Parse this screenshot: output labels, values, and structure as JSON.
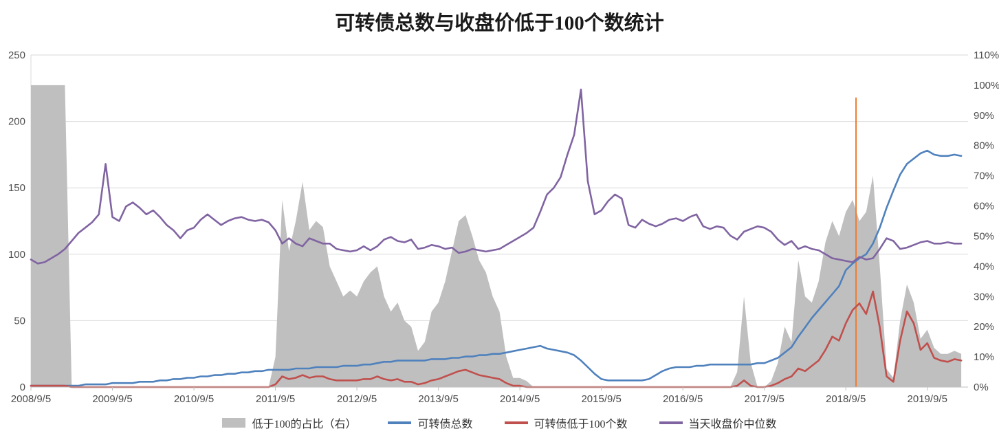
{
  "chart_data": {
    "type": "combo",
    "title": "可转债总数与收盘价低于100个数统计",
    "x_unit": "months since 2008/9",
    "x_domain": [
      0,
      138
    ],
    "x_ticks": [
      {
        "pos": 0,
        "label": "2008/9/5"
      },
      {
        "pos": 12,
        "label": "2009/9/5"
      },
      {
        "pos": 24,
        "label": "2010/9/5"
      },
      {
        "pos": 36,
        "label": "2011/9/5"
      },
      {
        "pos": 48,
        "label": "2012/9/5"
      },
      {
        "pos": 60,
        "label": "2013/9/5"
      },
      {
        "pos": 72,
        "label": "2014/9/5"
      },
      {
        "pos": 84,
        "label": "2015/9/5"
      },
      {
        "pos": 96,
        "label": "2016/9/5"
      },
      {
        "pos": 108,
        "label": "2017/9/5"
      },
      {
        "pos": 120,
        "label": "2018/9/5"
      },
      {
        "pos": 132,
        "label": "2019/9/5"
      }
    ],
    "left_axis": {
      "min": 0,
      "max": 250,
      "ticks": [
        0,
        50,
        100,
        150,
        200,
        250
      ]
    },
    "right_axis": {
      "min": 0,
      "max": 110,
      "step": 10,
      "tick_labels": [
        "0%",
        "10%",
        "20%",
        "30%",
        "40%",
        "50%",
        "60%",
        "70%",
        "80%",
        "90%",
        "100%",
        "110%"
      ]
    },
    "series": [
      {
        "name": "低于100的占比（右）",
        "type": "area",
        "axis": "right",
        "color": "#BFBFBF",
        "values": [
          100,
          100,
          100,
          100,
          100,
          100,
          0,
          0,
          0,
          0,
          0,
          0,
          0,
          0,
          0,
          0,
          0,
          0,
          0,
          0,
          0,
          0,
          0,
          0,
          0,
          0,
          0,
          0,
          0,
          0,
          0,
          0,
          0,
          0,
          0,
          0,
          10,
          62,
          45,
          55,
          68,
          52,
          55,
          53,
          40,
          35,
          30,
          32,
          30,
          35,
          38,
          40,
          30,
          25,
          28,
          22,
          20,
          12,
          15,
          25,
          28,
          35,
          45,
          55,
          57,
          50,
          42,
          38,
          30,
          25,
          10,
          3,
          3,
          2,
          0,
          0,
          0,
          0,
          0,
          0,
          0,
          0,
          0,
          0,
          0,
          0,
          0,
          0,
          0,
          0,
          0,
          0,
          0,
          0,
          0,
          0,
          0,
          0,
          0,
          0,
          0,
          0,
          0,
          0,
          5,
          30,
          8,
          0,
          0,
          2,
          8,
          20,
          15,
          42,
          30,
          28,
          35,
          48,
          55,
          50,
          58,
          62,
          55,
          58,
          70,
          40,
          6,
          3,
          22,
          34,
          28,
          16,
          19,
          13,
          11,
          11,
          12,
          11
        ]
      },
      {
        "name": "可转债总数",
        "type": "line",
        "axis": "left",
        "color": "#4F81BD",
        "values": [
          1,
          1,
          1,
          1,
          1,
          1,
          1,
          1,
          2,
          2,
          2,
          2,
          3,
          3,
          3,
          3,
          4,
          4,
          4,
          5,
          5,
          6,
          6,
          7,
          7,
          8,
          8,
          9,
          9,
          10,
          10,
          11,
          11,
          12,
          12,
          13,
          13,
          13,
          13,
          14,
          14,
          14,
          15,
          15,
          15,
          15,
          16,
          16,
          16,
          17,
          17,
          18,
          19,
          19,
          20,
          20,
          20,
          20,
          20,
          21,
          21,
          21,
          22,
          22,
          23,
          23,
          24,
          24,
          25,
          25,
          26,
          27,
          28,
          29,
          30,
          31,
          29,
          28,
          27,
          26,
          24,
          20,
          15,
          10,
          6,
          5,
          5,
          5,
          5,
          5,
          5,
          6,
          9,
          12,
          14,
          15,
          15,
          15,
          16,
          16,
          17,
          17,
          17,
          17,
          17,
          17,
          17,
          18,
          18,
          20,
          22,
          26,
          30,
          38,
          45,
          52,
          58,
          64,
          70,
          76,
          88,
          93,
          97,
          100,
          108,
          120,
          135,
          148,
          160,
          168,
          172,
          176,
          178,
          175,
          174,
          174,
          175,
          174
        ]
      },
      {
        "name": "可转债低于100个数",
        "type": "line",
        "axis": "left",
        "color": "#C0504D",
        "values": [
          1,
          1,
          1,
          1,
          1,
          1,
          0,
          0,
          0,
          0,
          0,
          0,
          0,
          0,
          0,
          0,
          0,
          0,
          0,
          0,
          0,
          0,
          0,
          0,
          0,
          0,
          0,
          0,
          0,
          0,
          0,
          0,
          0,
          0,
          0,
          0,
          2,
          8,
          6,
          7,
          9,
          7,
          8,
          8,
          6,
          5,
          5,
          5,
          5,
          6,
          6,
          8,
          6,
          5,
          6,
          4,
          4,
          2,
          3,
          5,
          6,
          8,
          10,
          12,
          13,
          11,
          9,
          8,
          7,
          6,
          3,
          1,
          1,
          0,
          0,
          0,
          0,
          0,
          0,
          0,
          0,
          0,
          0,
          0,
          0,
          0,
          0,
          0,
          0,
          0,
          0,
          0,
          0,
          0,
          0,
          0,
          0,
          0,
          0,
          0,
          0,
          0,
          0,
          0,
          1,
          5,
          1,
          0,
          0,
          1,
          3,
          6,
          8,
          14,
          12,
          16,
          20,
          28,
          38,
          35,
          48,
          58,
          63,
          55,
          72,
          45,
          8,
          4,
          35,
          57,
          48,
          28,
          33,
          22,
          20,
          19,
          21,
          20
        ]
      },
      {
        "name": "当天收盘价中位数",
        "type": "line",
        "axis": "left",
        "color": "#8064A2",
        "values": [
          96,
          93,
          94,
          97,
          100,
          104,
          110,
          116,
          120,
          124,
          130,
          168,
          128,
          125,
          136,
          139,
          135,
          130,
          133,
          128,
          122,
          118,
          112,
          118,
          120,
          126,
          130,
          126,
          122,
          125,
          127,
          128,
          126,
          125,
          126,
          124,
          118,
          108,
          112,
          108,
          106,
          112,
          110,
          108,
          108,
          104,
          103,
          102,
          103,
          106,
          103,
          106,
          111,
          113,
          110,
          109,
          111,
          104,
          105,
          107,
          106,
          104,
          105,
          101,
          102,
          104,
          103,
          102,
          103,
          104,
          107,
          110,
          113,
          116,
          120,
          132,
          145,
          150,
          158,
          175,
          190,
          224,
          155,
          130,
          133,
          140,
          145,
          142,
          122,
          120,
          126,
          123,
          121,
          123,
          126,
          127,
          125,
          128,
          130,
          121,
          119,
          121,
          120,
          114,
          111,
          117,
          119,
          121,
          120,
          117,
          111,
          107,
          110,
          104,
          106,
          104,
          103,
          100,
          97,
          96,
          95,
          94,
          98,
          96,
          97,
          104,
          112,
          110,
          104,
          105,
          107,
          109,
          110,
          108,
          108,
          109,
          108,
          108
        ]
      }
    ],
    "annotation": {
      "type": "vertical-line",
      "x": 121.5,
      "y_top_left_scale": 218,
      "color": "#ED7D31"
    },
    "grid": {
      "horizontal": true,
      "color": "#d9d9d9"
    },
    "legend_position": "bottom"
  }
}
